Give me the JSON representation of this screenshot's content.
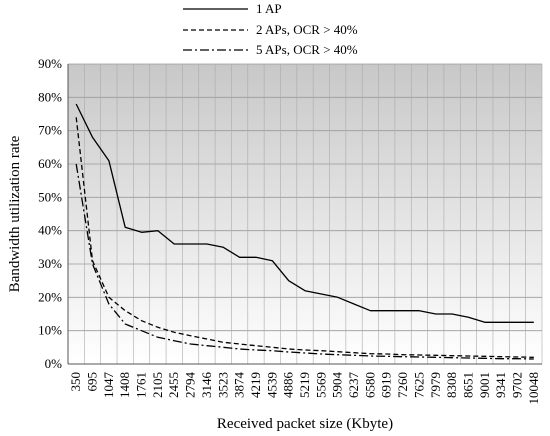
{
  "chart_data": {
    "type": "line",
    "title": "",
    "xlabel": "Received packet size (Kbyte)",
    "ylabel": "Bandwidth utilization rate",
    "ylim": [
      0,
      90
    ],
    "yticks": [
      "0%",
      "10%",
      "20%",
      "30%",
      "40%",
      "50%",
      "60%",
      "70%",
      "80%",
      "90%"
    ],
    "grid": "horizontal",
    "legend_position": "top",
    "categories": [
      "350",
      "695",
      "1047",
      "1408",
      "1761",
      "2105",
      "2455",
      "2794",
      "3146",
      "3523",
      "3874",
      "4219",
      "4539",
      "4886",
      "5219",
      "5569",
      "5904",
      "6237",
      "6580",
      "6919",
      "7260",
      "7625",
      "7979",
      "8308",
      "8651",
      "9001",
      "9341",
      "9702",
      "10048"
    ],
    "series": [
      {
        "name": "1 AP",
        "dash": "solid",
        "values": [
          78,
          68,
          61,
          41,
          39.5,
          40,
          36,
          36,
          36,
          35,
          32,
          32,
          31,
          25,
          22,
          21,
          20,
          18,
          16,
          16,
          16,
          16,
          15,
          15,
          14,
          12.5,
          12.5,
          12.5,
          12.5
        ]
      },
      {
        "name": "2 APs, OCR > 40%",
        "dash": "dashed",
        "values": [
          74,
          31,
          20,
          16,
          13,
          11,
          9.5,
          8.5,
          7.5,
          6.5,
          6,
          5.5,
          5,
          4.5,
          4.2,
          4,
          3.7,
          3.4,
          3.1,
          3,
          2.8,
          2.7,
          2.6,
          2.5,
          2.4,
          2.3,
          2.2,
          2.1,
          2
        ]
      },
      {
        "name": "5 APs, OCR > 40%",
        "dash": "dashdot",
        "values": [
          60,
          30,
          18,
          12,
          10,
          8,
          7,
          6,
          5.5,
          5,
          4.5,
          4.2,
          4,
          3.6,
          3.3,
          3,
          2.8,
          2.6,
          2.4,
          2.3,
          2.2,
          2.1,
          2,
          1.9,
          1.8,
          1.7,
          1.6,
          1.6,
          1.5
        ]
      }
    ]
  }
}
